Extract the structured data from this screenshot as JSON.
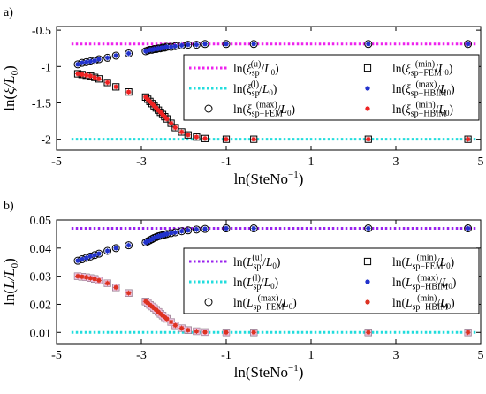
{
  "chart_data": [
    {
      "panel_label": "a)",
      "type": "scatter",
      "xlabel": "ln(SteNo⁻¹)",
      "ylabel": "ln(ξ/L₀)",
      "xlim": [
        -5,
        5
      ],
      "ylim": [
        -2.15,
        -0.45
      ],
      "xticks": [
        -5,
        -3,
        -1,
        1,
        3,
        5
      ],
      "yticks": [
        -2,
        -1.5,
        -1,
        -0.5
      ],
      "xtick_labels": [
        "-5",
        "-3",
        "-1",
        "1",
        "3",
        "5"
      ],
      "ytick_labels": [
        "-2",
        "-1.5",
        "-1",
        "-0.5"
      ],
      "legend_position": "center-right",
      "legend": [
        {
          "key": "upper_line",
          "label": "ln(ξsp(u)/L₀)"
        },
        {
          "key": "fem_min",
          "label": "ln(ξsp−FEM(min)/L₀)"
        },
        {
          "key": "lower_line",
          "label": "ln(ξsp(l)/L₀)"
        },
        {
          "key": "hbim_max",
          "label": "ln(ξsp−HBIM(max)/L₀)"
        },
        {
          "key": "fem_max",
          "label": "ln(ξsp−FEM(max)/L₀)"
        },
        {
          "key": "hbim_min",
          "label": "ln(ξsp−HBIM(min)/L₀)"
        }
      ],
      "x": [
        -4.5,
        -4.4,
        -4.3,
        -4.2,
        -4.1,
        -4.0,
        -3.8,
        -3.6,
        -3.3,
        -2.9,
        -2.85,
        -2.8,
        -2.75,
        -2.7,
        -2.65,
        -2.6,
        -2.55,
        -2.5,
        -2.45,
        -2.4,
        -2.3,
        -2.2,
        -2.05,
        -1.9,
        -1.7,
        -1.5,
        -1.0,
        -0.35,
        2.35,
        4.7
      ],
      "series": [
        {
          "key": "upper_line",
          "style": "dotted-line",
          "color": "#ee22ee",
          "values": [
            -0.69,
            -0.69
          ]
        },
        {
          "key": "lower_line",
          "style": "dotted-line",
          "color": "#22dddd",
          "values": [
            -2.0,
            -2.0
          ]
        },
        {
          "key": "fem_max",
          "marker": "circle",
          "color": "#000000",
          "values": [
            -0.97,
            -0.95,
            -0.94,
            -0.93,
            -0.92,
            -0.9,
            -0.88,
            -0.85,
            -0.82,
            -0.79,
            -0.78,
            -0.77,
            -0.77,
            -0.76,
            -0.76,
            -0.75,
            -0.75,
            -0.74,
            -0.74,
            -0.73,
            -0.73,
            -0.72,
            -0.71,
            -0.7,
            -0.7,
            -0.69,
            -0.69,
            -0.69,
            -0.69,
            -0.69
          ]
        },
        {
          "key": "hbim_max",
          "marker": "asterisk",
          "color": "#2233cc",
          "values": [
            -0.97,
            -0.95,
            -0.94,
            -0.93,
            -0.92,
            -0.9,
            -0.88,
            -0.85,
            -0.82,
            -0.79,
            -0.78,
            -0.77,
            -0.77,
            -0.76,
            -0.76,
            -0.75,
            -0.75,
            -0.74,
            -0.74,
            -0.73,
            -0.73,
            -0.72,
            -0.71,
            -0.7,
            -0.7,
            -0.69,
            -0.69,
            -0.69,
            -0.69,
            -0.69
          ]
        },
        {
          "key": "fem_min",
          "marker": "square",
          "color": "#000000",
          "values": [
            -1.1,
            -1.11,
            -1.12,
            -1.13,
            -1.15,
            -1.17,
            -1.22,
            -1.28,
            -1.35,
            -1.42,
            -1.45,
            -1.48,
            -1.51,
            -1.54,
            -1.57,
            -1.6,
            -1.63,
            -1.66,
            -1.69,
            -1.72,
            -1.78,
            -1.84,
            -1.9,
            -1.94,
            -1.97,
            -1.99,
            -2.0,
            -2.0,
            -2.0,
            -2.0
          ]
        },
        {
          "key": "hbim_min",
          "marker": "asterisk",
          "color": "#ee2222",
          "values": [
            -1.1,
            -1.11,
            -1.12,
            -1.13,
            -1.15,
            -1.17,
            -1.22,
            -1.28,
            -1.35,
            -1.42,
            -1.45,
            -1.48,
            -1.51,
            -1.54,
            -1.57,
            -1.6,
            -1.63,
            -1.66,
            -1.69,
            -1.72,
            -1.78,
            -1.84,
            -1.9,
            -1.94,
            -1.97,
            -1.99,
            -2.0,
            -2.0,
            -2.0,
            -2.0
          ]
        }
      ]
    },
    {
      "panel_label": "b)",
      "type": "scatter",
      "xlabel": "ln(SteNo⁻¹)",
      "ylabel": "ln(L/L₀)",
      "xlim": [
        -5,
        5
      ],
      "ylim": [
        0.006,
        0.05
      ],
      "xticks": [
        -5,
        -3,
        -1,
        1,
        3,
        5
      ],
      "yticks": [
        0.01,
        0.02,
        0.03,
        0.04,
        0.05
      ],
      "xtick_labels": [
        "-5",
        "-3",
        "-1",
        "1",
        "3",
        "5"
      ],
      "ytick_labels": [
        "0.01",
        "0.02",
        "0.03",
        "0.04",
        "0.05"
      ],
      "legend_position": "center-right",
      "legend": [
        {
          "key": "upper_line",
          "label": "ln(Lsp(u)/L₀)"
        },
        {
          "key": "fem_min",
          "label": "ln(Lsp−FEM(min)/L₀)"
        },
        {
          "key": "lower_line",
          "label": "ln(Lsp(l)/L₀)"
        },
        {
          "key": "hbim_max",
          "label": "ln(Lsp−HBIM(max)/L₀)"
        },
        {
          "key": "fem_max",
          "label": "ln(Lsp−FEM(max)/L₀)"
        },
        {
          "key": "hbim_min",
          "label": "ln(Lsp−HBIM(min)/L₀)"
        }
      ],
      "x": [
        -4.5,
        -4.4,
        -4.3,
        -4.2,
        -4.1,
        -4.0,
        -3.8,
        -3.6,
        -3.3,
        -2.9,
        -2.85,
        -2.8,
        -2.75,
        -2.7,
        -2.65,
        -2.6,
        -2.55,
        -2.5,
        -2.45,
        -2.4,
        -2.3,
        -2.2,
        -2.05,
        -1.9,
        -1.7,
        -1.5,
        -1.0,
        -0.35,
        2.35,
        4.7
      ],
      "series": [
        {
          "key": "upper_line",
          "style": "dotted-line",
          "color": "#9922ee",
          "values": [
            0.047,
            0.047
          ]
        },
        {
          "key": "lower_line",
          "style": "dotted-line",
          "color": "#22dddd",
          "values": [
            0.01,
            0.01
          ]
        },
        {
          "key": "fem_max",
          "marker": "circle",
          "color": "#000000",
          "values": [
            0.0355,
            0.036,
            0.0365,
            0.037,
            0.0375,
            0.038,
            0.039,
            0.04,
            0.041,
            0.042,
            0.0424,
            0.0428,
            0.0432,
            0.0436,
            0.0439,
            0.0442,
            0.0444,
            0.0446,
            0.0448,
            0.045,
            0.0453,
            0.0456,
            0.046,
            0.0463,
            0.0466,
            0.0468,
            0.047,
            0.047,
            0.047,
            0.047
          ]
        },
        {
          "key": "hbim_max",
          "marker": "asterisk",
          "color": "#2233cc",
          "values": [
            0.0355,
            0.036,
            0.0365,
            0.037,
            0.0375,
            0.038,
            0.039,
            0.04,
            0.041,
            0.042,
            0.0424,
            0.0428,
            0.0432,
            0.0436,
            0.0439,
            0.0442,
            0.0444,
            0.0446,
            0.0448,
            0.045,
            0.0453,
            0.0456,
            0.046,
            0.0463,
            0.0466,
            0.0468,
            0.047,
            0.047,
            0.047,
            0.047
          ]
        },
        {
          "key": "fem_min",
          "marker": "square",
          "color": "#000000",
          "values": [
            0.03,
            0.0298,
            0.0296,
            0.0293,
            0.029,
            0.0285,
            0.0275,
            0.026,
            0.024,
            0.021,
            0.0205,
            0.0198,
            0.0192,
            0.0186,
            0.018,
            0.0173,
            0.0166,
            0.016,
            0.0154,
            0.0148,
            0.0137,
            0.0125,
            0.0115,
            0.0108,
            0.0104,
            0.0101,
            0.01,
            0.01,
            0.01,
            0.01
          ]
        },
        {
          "key": "hbim_min",
          "marker": "asterisk",
          "color": "#dd3322",
          "values": [
            0.03,
            0.0298,
            0.0296,
            0.0293,
            0.029,
            0.0285,
            0.0275,
            0.026,
            0.024,
            0.021,
            0.0205,
            0.0198,
            0.0192,
            0.0186,
            0.018,
            0.0173,
            0.0166,
            0.016,
            0.0154,
            0.0148,
            0.0137,
            0.0125,
            0.0115,
            0.0108,
            0.0104,
            0.0101,
            0.01,
            0.01,
            0.01,
            0.01
          ]
        }
      ]
    }
  ]
}
